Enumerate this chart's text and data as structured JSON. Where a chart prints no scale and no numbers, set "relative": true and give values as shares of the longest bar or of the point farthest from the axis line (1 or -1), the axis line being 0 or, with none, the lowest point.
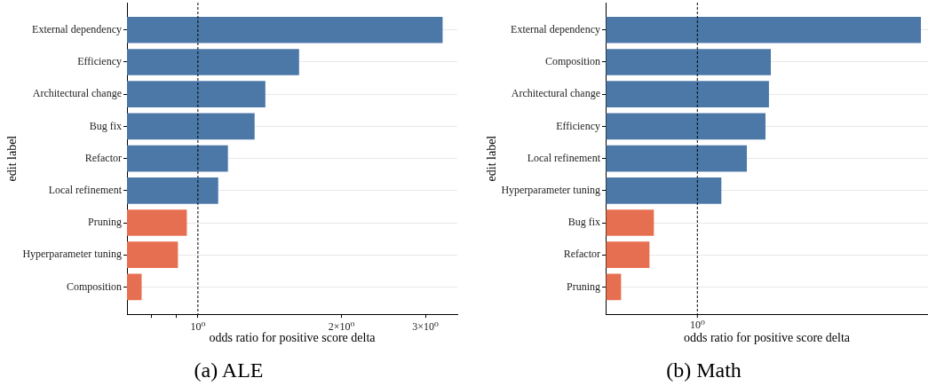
{
  "chart_data": [
    {
      "type": "bar",
      "orientation": "horizontal",
      "title": "(a) ALE",
      "xlabel": "odds ratio for positive score delta",
      "ylabel": "edit label",
      "categories": [
        "External dependency",
        "Efficiency",
        "Architectural change",
        "Bug fix",
        "Refactor",
        "Local refinement",
        "Pruning",
        "Hyperparameter tuning",
        "Composition"
      ],
      "values": [
        3.26,
        1.63,
        1.385,
        1.315,
        1.156,
        1.103,
        0.948,
        0.908,
        0.762
      ],
      "colors": [
        "#4c78a8",
        "#4c78a8",
        "#4c78a8",
        "#4c78a8",
        "#4c78a8",
        "#4c78a8",
        "#e76f51",
        "#e76f51",
        "#e76f51"
      ],
      "log": "x",
      "xlim": [
        0.71,
        3.5
      ],
      "xticks": [
        {
          "value": 0.8,
          "label": null
        },
        {
          "value": 0.9,
          "label": null
        },
        {
          "value": 1,
          "label": "10⁰"
        },
        {
          "value": 2,
          "label": "2×10⁰"
        },
        {
          "value": 3,
          "label": "3×10⁰"
        }
      ],
      "grid": "y",
      "ref_lines": [
        {
          "axis": "x",
          "value": 1,
          "color": "#000000",
          "line_style": "dashed"
        }
      ]
    },
    {
      "type": "bar",
      "orientation": "horizontal",
      "title": "(b) Math",
      "xlabel": "odds ratio for positive score delta",
      "ylabel": "edit label",
      "categories": [
        "External dependency",
        "Composition",
        "Architectural change",
        "Efficiency",
        "Local refinement",
        "Hyperparameter tuning",
        "Bug fix",
        "Refactor",
        "Pruning"
      ],
      "values": [
        1,
        0.524,
        0.518,
        0.507,
        0.448,
        0.367,
        0.153,
        0.139,
        0.049
      ],
      "colors": [
        "#4c78a8",
        "#4c78a8",
        "#4c78a8",
        "#4c78a8",
        "#4c78a8",
        "#4c78a8",
        "#e76f51",
        "#e76f51",
        "#e76f51"
      ],
      "relative": true,
      "grid": "y",
      "ref_lines": [
        {
          "axis": "x",
          "value": 0.291,
          "color": "#000000",
          "line_style": "dashed",
          "label": "10⁰"
        }
      ]
    }
  ]
}
